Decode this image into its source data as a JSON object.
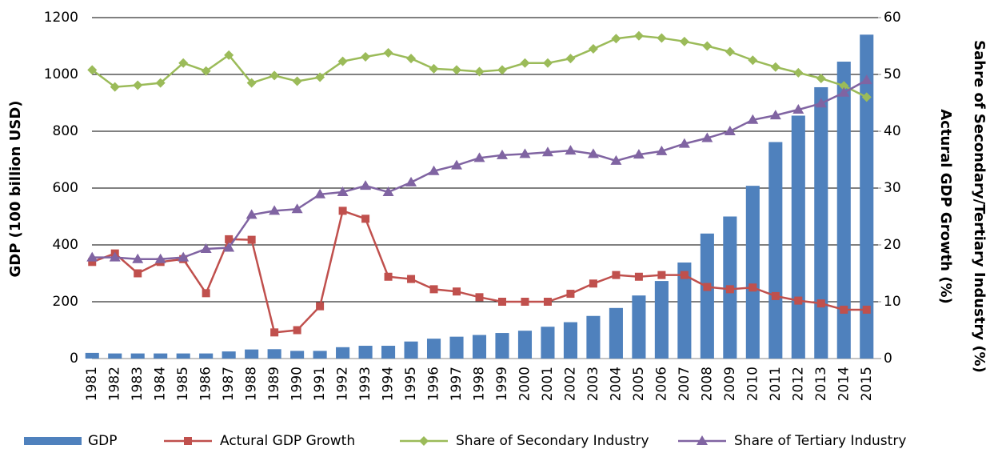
{
  "chart_data": {
    "type": "bar-line",
    "y_label": "GDP (100 billion USD)",
    "y2_label": [
      "Sahre of Secondary/Tertiary Industry (%)",
      "Actural GDP Growth (%)"
    ],
    "categories": [
      "1981",
      "1982",
      "1983",
      "1984",
      "1985",
      "1986",
      "1987",
      "1988",
      "1989",
      "1990",
      "1991",
      "1992",
      "1993",
      "1994",
      "1995",
      "1996",
      "1997",
      "1998",
      "1999",
      "2000",
      "2001",
      "2002",
      "2003",
      "2004",
      "2005",
      "2006",
      "2007",
      "2008",
      "2009",
      "2010",
      "2011",
      "2012",
      "2013",
      "2014",
      "2015"
    ],
    "series": [
      {
        "name": "GDP",
        "color": "#4f81bd",
        "kind": "bar",
        "axis": "y",
        "values": [
          20,
          18,
          18,
          18,
          18,
          18,
          25,
          32,
          33,
          27,
          27,
          40,
          45,
          45,
          60,
          70,
          77,
          83,
          90,
          98,
          112,
          128,
          150,
          178,
          222,
          273,
          338,
          440,
          500,
          608,
          762,
          855,
          955,
          1045,
          1140
        ]
      },
      {
        "name": "Actural GDP Growth",
        "color": "#c0504d",
        "kind": "line",
        "marker": "square",
        "axis": "y2",
        "values": [
          17,
          18.5,
          15,
          17,
          17.5,
          11.5,
          21,
          20.9,
          4.6,
          5,
          9.2,
          26,
          24.6,
          14.4,
          14,
          12.2,
          11.8,
          10.8,
          10,
          10,
          10,
          11.4,
          13.2,
          14.7,
          14.4,
          14.7,
          14.7,
          12.6,
          12.2,
          12.5,
          11,
          10.2,
          9.7,
          8.6,
          8.6
        ]
      },
      {
        "name": "Share of Secondary Industry",
        "color": "#9bbb59",
        "kind": "line",
        "marker": "diamond",
        "axis": "y2",
        "values": [
          50.8,
          47.8,
          48.1,
          48.5,
          52,
          50.6,
          53.4,
          48.5,
          49.8,
          48.8,
          49.5,
          52.3,
          53.1,
          53.8,
          52.8,
          51,
          50.8,
          50.5,
          50.8,
          52,
          52,
          52.8,
          54.5,
          56.3,
          56.8,
          56.4,
          55.8,
          55,
          54,
          52.5,
          51.3,
          50.3,
          49.3,
          48,
          46
        ]
      },
      {
        "name": "Share of Tertiary Industry",
        "color": "#8064a2",
        "kind": "line",
        "marker": "triangle",
        "axis": "y2",
        "values": [
          17.8,
          17.8,
          17.5,
          17.5,
          17.8,
          19.3,
          19.5,
          25.3,
          26,
          26.3,
          28.9,
          29.3,
          30.4,
          29.3,
          31,
          33,
          34,
          35.3,
          35.8,
          36,
          36.3,
          36.6,
          36,
          34.8,
          35.9,
          36.5,
          37.8,
          38.8,
          40,
          42,
          42.8,
          43.8,
          44.9,
          46.8,
          49
        ]
      }
    ],
    "ylim": [
      0,
      1200
    ],
    "yticks": [
      0,
      200,
      400,
      600,
      800,
      1000,
      1200
    ],
    "y2lim": [
      0,
      60
    ],
    "y2ticks": [
      0,
      10,
      20,
      30,
      40,
      50,
      60
    ],
    "grid": true,
    "legend": "bottom"
  }
}
